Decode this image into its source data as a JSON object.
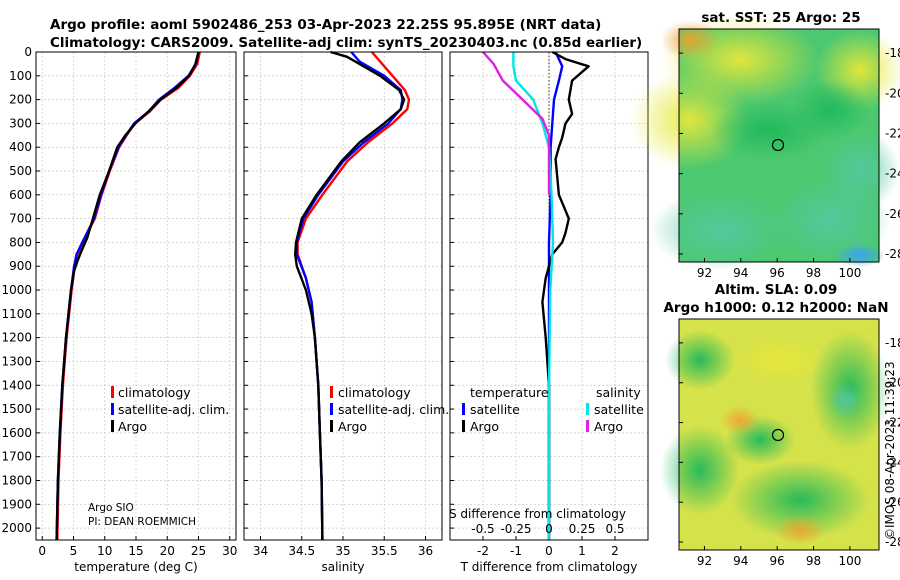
{
  "header": {
    "title_line1": "Argo profile: aoml 5902486_253 03-Apr-2023 22.25S 95.895E (NRT data)",
    "title_line2": "Climatology: CARS2009. Satellite-adj clim: synTS_20230403.nc (0.85d earlier)"
  },
  "colors": {
    "climatology": "#ff0000",
    "satellite_adj": "#0000ff",
    "argo": "#000000",
    "sat_salinity": "#00e5e5",
    "argo_salinity": "#e020e0"
  },
  "depth_axis": {
    "ticks": [
      "0",
      "100",
      "200",
      "300",
      "400",
      "500",
      "600",
      "700",
      "800",
      "900",
      "1000",
      "1100",
      "1200",
      "1300",
      "1400",
      "1500",
      "1600",
      "1700",
      "1800",
      "1900",
      "2000"
    ]
  },
  "panel_temperature": {
    "xlabel": "temperature (deg C)",
    "xticks": [
      "0",
      "5",
      "10",
      "15",
      "20",
      "25",
      "30"
    ],
    "legend": [
      "climatology",
      "satellite-adj. clim.",
      "Argo"
    ],
    "credit_line1": "Argo SIO",
    "credit_line2": "PI: DEAN ROEMMICH"
  },
  "panel_salinity": {
    "xlabel": "salinity",
    "xticks": [
      "34",
      "34.5",
      "35",
      "35.5",
      "36"
    ],
    "legend": [
      "climatology",
      "satellite-adj. clim.",
      "Argo"
    ]
  },
  "panel_difference": {
    "xlabel": "T difference from climatology",
    "xticks": [
      "-2",
      "-1",
      "0",
      "1",
      "2"
    ],
    "top_label": "S difference from climatology",
    "s_ticks": [
      "-0.5",
      "-0.25",
      "0",
      "0.25",
      "0.5"
    ],
    "legend_temp_title": "temperature",
    "legend_sal_title": "salinity",
    "legend_temp": [
      "satellite",
      "Argo"
    ],
    "legend_sal": [
      "satellite",
      "Argo"
    ]
  },
  "map_sst": {
    "title": "sat. SST: 25 Argo: 25",
    "yticks": [
      "-18",
      "-20",
      "-22",
      "-24",
      "-26",
      "-28"
    ],
    "xticks": [
      "92",
      "94",
      "96",
      "98",
      "100"
    ]
  },
  "map_sla": {
    "title_line1": "Altim. SLA: 0.09",
    "title_line2": "Argo h1000: 0.12 h2000: NaN",
    "yticks": [
      "-18",
      "-20",
      "-22",
      "-24",
      "-26",
      "-28"
    ],
    "xticks": [
      "92",
      "94",
      "96",
      "98",
      "100"
    ]
  },
  "watermark": "©IMOS 08-Apr-2023 11:39:23",
  "chart_data": [
    {
      "type": "line",
      "title": "temperature profile",
      "xlabel": "temperature (deg C)",
      "ylabel": "depth",
      "xlim": [
        -1,
        31
      ],
      "ylim": [
        2050,
        0
      ],
      "series": [
        {
          "name": "climatology",
          "x": [
            25.2,
            24.8,
            23.6,
            21.8,
            19.0,
            17.2,
            14.8,
            13.5,
            12.3,
            10.8,
            9.5,
            8.4,
            6.5,
            5.6,
            5.2,
            4.7,
            4.3,
            3.9,
            3.3,
            2.9,
            2.6,
            2.4
          ],
          "y": [
            0,
            50,
            100,
            150,
            200,
            250,
            300,
            350,
            400,
            500,
            600,
            700,
            800,
            850,
            900,
            1000,
            1100,
            1200,
            1400,
            1600,
            1800,
            2050
          ]
        },
        {
          "name": "satellite-adj. clim.",
          "x": [
            25.0,
            24.6,
            23.4,
            21.2,
            18.7,
            17.0,
            14.7,
            13.4,
            12.2,
            10.7,
            9.4,
            8.3,
            6.4,
            5.5,
            5.1,
            4.6,
            4.2,
            3.8,
            3.2,
            2.8,
            2.5,
            2.3
          ],
          "y": [
            0,
            50,
            100,
            150,
            200,
            250,
            300,
            350,
            400,
            500,
            600,
            700,
            800,
            850,
            900,
            1000,
            1100,
            1200,
            1400,
            1600,
            1800,
            2050
          ]
        },
        {
          "name": "Argo",
          "x": [
            25.0,
            24.5,
            23.5,
            21.5,
            18.9,
            17.0,
            14.9,
            13.3,
            12.0,
            10.7,
            9.2,
            8.1,
            7.2,
            6.2,
            5.6,
            5.1,
            4.6,
            4.2,
            3.8,
            3.2,
            2.8,
            2.5,
            2.3
          ],
          "y": [
            0,
            50,
            100,
            150,
            200,
            250,
            300,
            350,
            400,
            500,
            600,
            700,
            780,
            840,
            880,
            920,
            1000,
            1100,
            1200,
            1400,
            1600,
            1800,
            2050
          ]
        }
      ]
    },
    {
      "type": "line",
      "title": "salinity profile",
      "xlabel": "salinity",
      "ylabel": "depth",
      "xlim": [
        33.8,
        36.2
      ],
      "ylim": [
        2050,
        0
      ],
      "series": [
        {
          "name": "climatology",
          "x": [
            35.35,
            35.45,
            35.6,
            35.75,
            35.8,
            35.78,
            35.6,
            35.3,
            35.05,
            34.75,
            34.55,
            34.45,
            34.45,
            34.55,
            34.62,
            34.66,
            34.7,
            34.72,
            34.74,
            34.75
          ],
          "y": [
            0,
            40,
            100,
            160,
            200,
            240,
            300,
            380,
            460,
            600,
            700,
            800,
            850,
            950,
            1050,
            1200,
            1400,
            1600,
            1800,
            2050
          ]
        },
        {
          "name": "satellite-adj. clim.",
          "x": [
            35.1,
            35.2,
            35.5,
            35.7,
            35.72,
            35.7,
            35.55,
            35.25,
            35.0,
            34.7,
            34.52,
            34.44,
            34.44,
            34.55,
            34.62,
            34.66,
            34.7,
            34.72,
            34.74,
            34.75
          ],
          "y": [
            0,
            40,
            100,
            160,
            200,
            240,
            300,
            380,
            460,
            600,
            700,
            800,
            850,
            950,
            1050,
            1200,
            1400,
            1600,
            1800,
            2050
          ]
        },
        {
          "name": "Argo",
          "x": [
            34.85,
            35.05,
            35.45,
            35.68,
            35.74,
            35.7,
            35.5,
            35.2,
            34.98,
            34.68,
            34.5,
            34.43,
            34.42,
            34.44,
            34.55,
            34.62,
            34.66,
            34.7,
            34.72,
            34.74,
            34.75
          ],
          "y": [
            0,
            20,
            100,
            160,
            200,
            240,
            300,
            380,
            460,
            600,
            700,
            800,
            850,
            900,
            1000,
            1100,
            1200,
            1400,
            1600,
            1800,
            2050
          ]
        }
      ]
    },
    {
      "type": "line",
      "title": "difference from climatology",
      "xlabel": "T difference from climatology",
      "ylabel": "depth",
      "xlim": [
        -3,
        3
      ],
      "ylim": [
        2050,
        0
      ],
      "series": [
        {
          "name": "temperature satellite",
          "x": [
            0.2,
            0.4,
            0.3,
            0.15,
            0.1,
            0.05,
            0.05,
            0.0,
            0.0,
            0.0,
            0.0,
            0.0
          ],
          "y": [
            0,
            60,
            120,
            200,
            300,
            400,
            600,
            800,
            1000,
            1400,
            1800,
            2050
          ]
        },
        {
          "name": "temperature Argo",
          "x": [
            0.1,
            0.5,
            1.2,
            0.7,
            0.6,
            0.7,
            0.5,
            0.4,
            0.3,
            0.2,
            0.3,
            0.6,
            0.5,
            0.4,
            0.1,
            -0.1,
            -0.2,
            -0.1,
            0.0,
            0.0,
            0.0
          ],
          "y": [
            0,
            30,
            60,
            120,
            200,
            260,
            300,
            360,
            400,
            450,
            600,
            700,
            760,
            800,
            850,
            950,
            1050,
            1200,
            1400,
            1800,
            2050
          ]
        },
        {
          "name": "salinity satellite",
          "x": [
            -0.27,
            -0.27,
            -0.25,
            -0.12,
            -0.05,
            0.0,
            0.02,
            0.03,
            0.01,
            0.0,
            0.0,
            0.0
          ],
          "y": [
            0,
            60,
            120,
            200,
            300,
            400,
            600,
            800,
            1000,
            1400,
            1800,
            2050
          ]
        },
        {
          "name": "salinity Argo",
          "x": [
            -0.5,
            -0.42,
            -0.35,
            -0.2,
            -0.05,
            0.0,
            0.0,
            0.0
          ],
          "y": [
            0,
            50,
            120,
            200,
            280,
            350,
            450,
            600
          ]
        }
      ]
    }
  ]
}
